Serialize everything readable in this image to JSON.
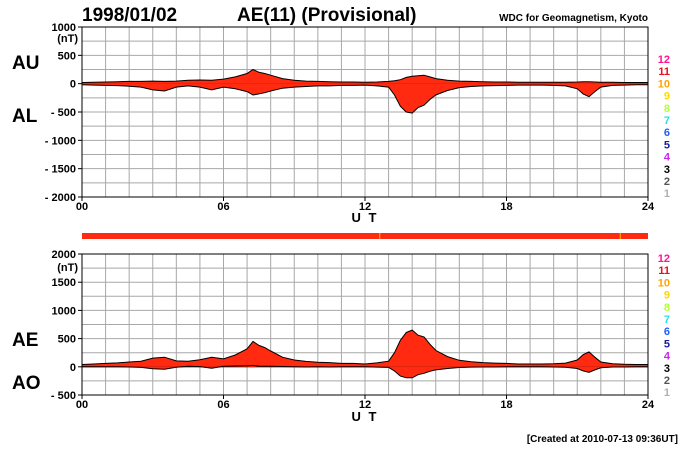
{
  "date": "1998/01/02",
  "plot_title": "AE(11) (Provisional)",
  "organization": "WDC for Geomagnetism, Kyoto",
  "created": "[Created at 2010-07-13 09:36UT]",
  "unit": "(nT)",
  "xlabel": "U T",
  "fill_color": "#ff2a10",
  "station_scale": [
    {
      "label": "12",
      "color": "#ff1493"
    },
    {
      "label": "11",
      "color": "#e8101a"
    },
    {
      "label": "10",
      "color": "#ffa500"
    },
    {
      "label": "9",
      "color": "#ffd700"
    },
    {
      "label": "8",
      "color": "#b5ff3a"
    },
    {
      "label": "7",
      "color": "#27e0e8"
    },
    {
      "label": "6",
      "color": "#1e60ff"
    },
    {
      "label": "5",
      "color": "#1a1aa0"
    },
    {
      "label": "4",
      "color": "#cc22ee"
    },
    {
      "label": "3",
      "color": "#000000"
    },
    {
      "label": "2",
      "color": "#555555"
    },
    {
      "label": "1",
      "color": "#b0b0b0"
    }
  ],
  "station_bar": {
    "stations_all_hours": 12,
    "dips_at_ut": [
      12.6,
      22.8
    ]
  },
  "chart_data": [
    {
      "type": "area",
      "panel": "AU/AL",
      "labels": {
        "upper": "AU",
        "lower": "AL"
      },
      "ylim": [
        -2000,
        1000
      ],
      "yticks": [
        1000,
        500,
        0,
        -500,
        -1000,
        -1500,
        -2000
      ],
      "ytick_labels": [
        "1000",
        "500",
        "0",
        "- 500",
        "- 1000",
        "- 1500",
        "- 2000"
      ],
      "xlim": [
        0,
        24
      ],
      "xticks": [
        0,
        6,
        12,
        18,
        24
      ],
      "xtick_labels": [
        "00",
        "06",
        "12",
        "18",
        "24"
      ],
      "grid": true,
      "x": [
        0,
        0.5,
        1,
        1.5,
        2,
        2.5,
        3,
        3.5,
        4,
        4.5,
        5,
        5.5,
        6,
        6.5,
        7,
        7.25,
        7.5,
        7.75,
        8,
        8.5,
        9,
        9.5,
        10,
        10.5,
        11,
        11.5,
        12,
        12.5,
        13,
        13.25,
        13.5,
        13.75,
        14,
        14.25,
        14.5,
        14.75,
        15,
        15.5,
        16,
        16.5,
        17,
        17.5,
        18,
        18.5,
        19,
        19.5,
        20,
        20.5,
        21,
        21.25,
        21.5,
        21.75,
        22,
        22.5,
        23,
        23.5,
        24
      ],
      "series": [
        {
          "name": "AU",
          "values": [
            20,
            25,
            30,
            35,
            40,
            40,
            45,
            40,
            45,
            60,
            65,
            60,
            80,
            120,
            180,
            250,
            200,
            180,
            150,
            90,
            60,
            45,
            40,
            35,
            30,
            30,
            25,
            30,
            40,
            50,
            70,
            110,
            130,
            140,
            150,
            120,
            90,
            60,
            45,
            40,
            35,
            30,
            30,
            25,
            25,
            25,
            25,
            25,
            30,
            35,
            35,
            30,
            25,
            25,
            20,
            20,
            20
          ]
        },
        {
          "name": "AL",
          "values": [
            -20,
            -25,
            -30,
            -35,
            -45,
            -60,
            -110,
            -130,
            -60,
            -40,
            -60,
            -110,
            -60,
            -90,
            -140,
            -200,
            -180,
            -160,
            -130,
            -80,
            -60,
            -50,
            -40,
            -40,
            -30,
            -30,
            -25,
            -40,
            -60,
            -200,
            -400,
            -500,
            -520,
            -420,
            -380,
            -280,
            -200,
            -120,
            -70,
            -50,
            -40,
            -35,
            -30,
            -25,
            -25,
            -25,
            -30,
            -40,
            -90,
            -180,
            -230,
            -140,
            -60,
            -30,
            -25,
            -20,
            -20
          ]
        }
      ]
    },
    {
      "type": "area",
      "panel": "AE/AO",
      "labels": {
        "upper": "AE",
        "lower": "AO"
      },
      "ylim": [
        -500,
        2000
      ],
      "yticks": [
        2000,
        1500,
        1000,
        500,
        0,
        -500
      ],
      "ytick_labels": [
        "2000",
        "1500",
        "1000",
        "500",
        "0",
        "- 500"
      ],
      "xlim": [
        0,
        24
      ],
      "xticks": [
        0,
        6,
        12,
        18,
        24
      ],
      "xtick_labels": [
        "00",
        "06",
        "12",
        "18",
        "24"
      ],
      "grid": true,
      "x": [
        0,
        0.5,
        1,
        1.5,
        2,
        2.5,
        3,
        3.5,
        4,
        4.5,
        5,
        5.5,
        6,
        6.5,
        7,
        7.25,
        7.5,
        7.75,
        8,
        8.5,
        9,
        9.5,
        10,
        10.5,
        11,
        11.5,
        12,
        12.5,
        13,
        13.25,
        13.5,
        13.75,
        14,
        14.25,
        14.5,
        14.75,
        15,
        15.5,
        16,
        16.5,
        17,
        17.5,
        18,
        18.5,
        19,
        19.5,
        20,
        20.5,
        21,
        21.25,
        21.5,
        21.75,
        22,
        22.5,
        23,
        23.5,
        24
      ],
      "series": [
        {
          "name": "AE",
          "values": [
            40,
            50,
            60,
            70,
            85,
            100,
            155,
            170,
            105,
            100,
            125,
            170,
            140,
            210,
            320,
            450,
            380,
            340,
            280,
            170,
            120,
            95,
            80,
            75,
            60,
            60,
            50,
            70,
            100,
            250,
            470,
            610,
            650,
            560,
            530,
            400,
            290,
            180,
            115,
            90,
            75,
            65,
            60,
            50,
            50,
            50,
            55,
            65,
            120,
            215,
            265,
            170,
            85,
            55,
            45,
            40,
            40
          ]
        },
        {
          "name": "AO",
          "values": [
            0,
            0,
            0,
            0,
            -3,
            -10,
            -33,
            -45,
            -8,
            10,
            3,
            -25,
            10,
            15,
            20,
            25,
            10,
            10,
            10,
            5,
            0,
            -3,
            0,
            -3,
            0,
            0,
            0,
            -5,
            -10,
            -75,
            -165,
            -195,
            -195,
            -140,
            -115,
            -80,
            -55,
            -30,
            -13,
            -5,
            -3,
            -3,
            0,
            0,
            0,
            0,
            -3,
            -8,
            -30,
            -73,
            -98,
            -55,
            -18,
            -3,
            -3,
            0,
            0
          ]
        }
      ]
    }
  ]
}
